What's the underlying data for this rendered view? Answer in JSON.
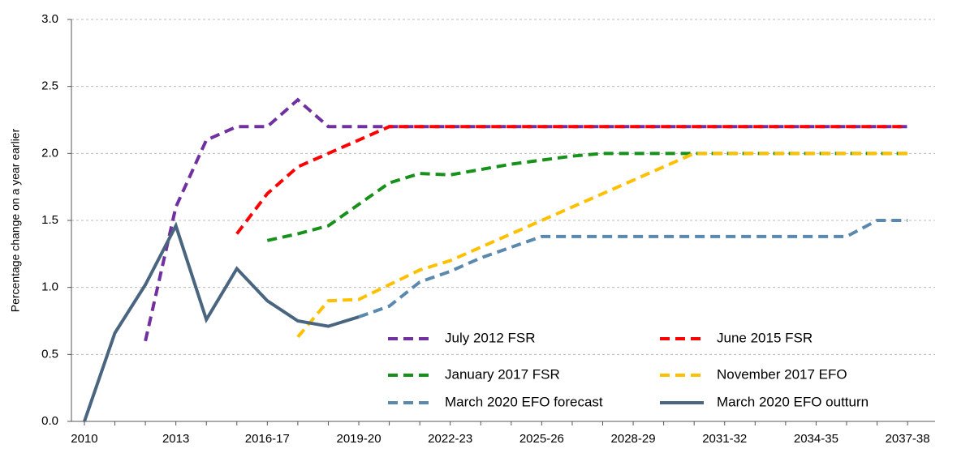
{
  "chart_data": {
    "type": "line",
    "y_label": "Percentage change on a year earlier",
    "categories": [
      "2010",
      null,
      null,
      "2013",
      null,
      null,
      "2016-17",
      null,
      null,
      "2019-20",
      null,
      null,
      "2022-23",
      null,
      null,
      "2025-26",
      null,
      null,
      "2028-29",
      null,
      null,
      "2031-32",
      null,
      null,
      "2034-35",
      null,
      null,
      "2037-38"
    ],
    "ylim": [
      0,
      3
    ],
    "yticks": [
      {
        "value": 0,
        "label": "0.0"
      },
      {
        "value": 0.5,
        "label": "0.5"
      },
      {
        "value": 1,
        "label": "1.0"
      },
      {
        "value": 1.5,
        "label": "1.5"
      },
      {
        "value": 2,
        "label": "2.0"
      },
      {
        "value": 2.5,
        "label": "2.5"
      },
      {
        "value": 3,
        "label": "3.0"
      }
    ],
    "grid": true,
    "legend": "lower right",
    "series": [
      {
        "name": "July 2012 FSR",
        "color": "#7030a0",
        "style": "dashed",
        "values": [
          null,
          null,
          0.6,
          1.6,
          2.1,
          2.2,
          2.2,
          2.4,
          2.2,
          2.2,
          2.2,
          2.2,
          2.2,
          2.2,
          2.2,
          2.2,
          2.2,
          2.2,
          2.2,
          2.2,
          2.2,
          2.2,
          2.2,
          2.2,
          2.2,
          2.2,
          2.2,
          2.2
        ]
      },
      {
        "name": "June 2015 FSR",
        "color": "#ff0000",
        "style": "dashed",
        "values": [
          null,
          null,
          null,
          null,
          null,
          1.4,
          1.7,
          1.9,
          2.0,
          2.1,
          2.2,
          2.2,
          2.2,
          2.2,
          2.2,
          2.2,
          2.2,
          2.2,
          2.2,
          2.2,
          2.2,
          2.2,
          2.2,
          2.2,
          2.2,
          2.2,
          2.2,
          2.2
        ]
      },
      {
        "name": "January 2017 FSR",
        "color": "#16911a",
        "style": "dashed",
        "values": [
          null,
          null,
          null,
          null,
          null,
          null,
          1.35,
          1.4,
          1.46,
          1.62,
          1.78,
          1.85,
          1.84,
          1.88,
          1.92,
          1.95,
          1.98,
          2.0,
          2.0,
          2.0,
          2.0,
          2.0,
          2.0,
          2.0,
          2.0,
          2.0,
          2.0,
          2.0
        ]
      },
      {
        "name": "November 2017 EFO",
        "color": "#ffc000",
        "style": "dashed",
        "values": [
          null,
          null,
          null,
          null,
          null,
          null,
          null,
          0.63,
          0.9,
          0.91,
          1.02,
          1.13,
          1.2,
          1.3,
          1.4,
          1.5,
          1.6,
          1.7,
          1.8,
          1.9,
          2.0,
          2.0,
          2.0,
          2.0,
          2.0,
          2.0,
          2.0,
          2.0
        ]
      },
      {
        "name": "March 2020 EFO forecast",
        "color": "#5b88ad",
        "style": "dashed",
        "values": [
          null,
          null,
          null,
          null,
          null,
          null,
          null,
          null,
          null,
          0.78,
          0.86,
          1.04,
          1.12,
          1.22,
          1.3,
          1.38,
          1.38,
          1.38,
          1.38,
          1.38,
          1.38,
          1.38,
          1.38,
          1.38,
          1.38,
          1.38,
          1.5,
          1.5
        ]
      },
      {
        "name": "March 2020 EFO outturn",
        "color": "#4a6580",
        "style": "solid",
        "values": [
          0.0,
          0.66,
          1.02,
          1.46,
          0.76,
          1.14,
          0.9,
          0.75,
          0.71,
          0.78,
          null,
          null,
          null,
          null,
          null,
          null,
          null,
          null,
          null,
          null,
          null,
          null,
          null,
          null,
          null,
          null,
          null,
          null
        ]
      }
    ]
  }
}
